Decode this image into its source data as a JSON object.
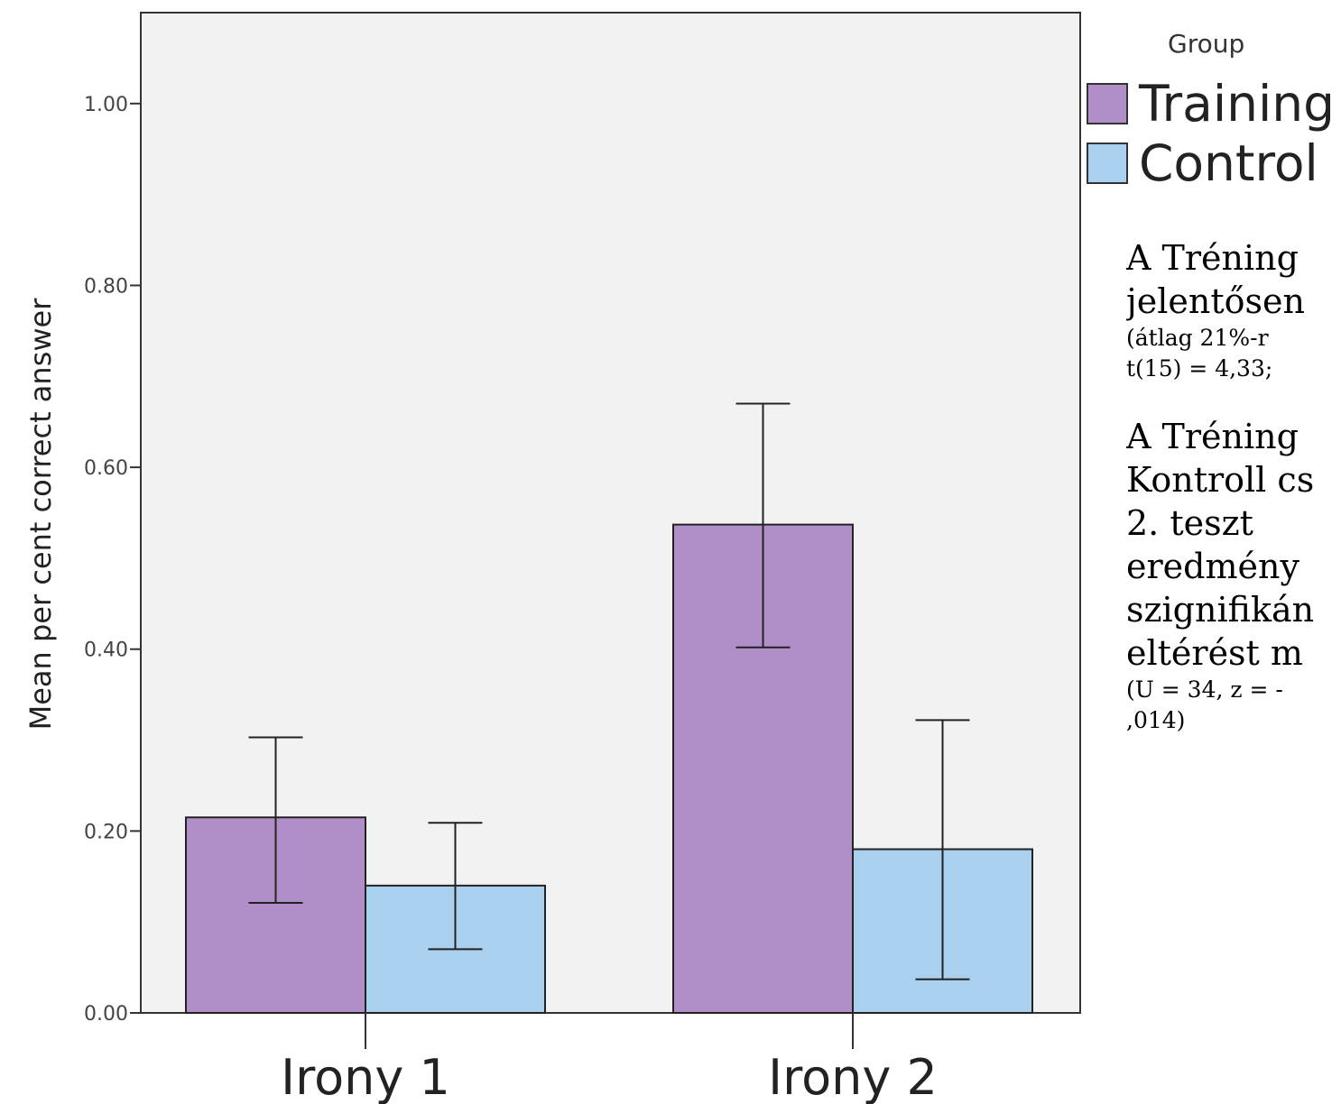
{
  "chart_data": {
    "type": "bar",
    "title": "",
    "xlabel": "",
    "ylabel": "Mean per cent correct answer",
    "ylim": [
      0,
      1.1
    ],
    "yticks": [
      "0.00",
      "0.20",
      "0.40",
      "0.60",
      "0.80",
      "1.00"
    ],
    "categories": [
      "Irony 1",
      "Irony 2"
    ],
    "legend_title": "Group",
    "legend_position": "top-right",
    "series": [
      {
        "name": "Training",
        "color": "#b18ec9",
        "values": [
          0.215,
          0.537
        ],
        "error_low": [
          0.121,
          0.402
        ],
        "error_high": [
          0.303,
          0.67
        ]
      },
      {
        "name": "Control",
        "color": "#a9d0ef",
        "values": [
          0.14,
          0.18
        ],
        "error_low": [
          0.07,
          0.037
        ],
        "error_high": [
          0.209,
          0.322
        ]
      }
    ]
  },
  "side_text": [
    {
      "text": "A Tréning",
      "size": "big"
    },
    {
      "text": "jelentősen",
      "size": "big"
    },
    {
      "text": "(átlag 21%-r",
      "size": "small"
    },
    {
      "text": "t(15) = 4,33;",
      "size": "small"
    },
    {
      "text": "",
      "size": "gap"
    },
    {
      "text": "A Tréning",
      "size": "big"
    },
    {
      "text": "Kontroll cs",
      "size": "big"
    },
    {
      "text": "2. teszt",
      "size": "big"
    },
    {
      "text": "eredmény",
      "size": "big"
    },
    {
      "text": "szignifikán",
      "size": "big"
    },
    {
      "text": "eltérést m",
      "size": "big"
    },
    {
      "text": "(U = 34, z = -",
      "size": "small"
    },
    {
      "text": ",014)",
      "size": "small"
    }
  ]
}
